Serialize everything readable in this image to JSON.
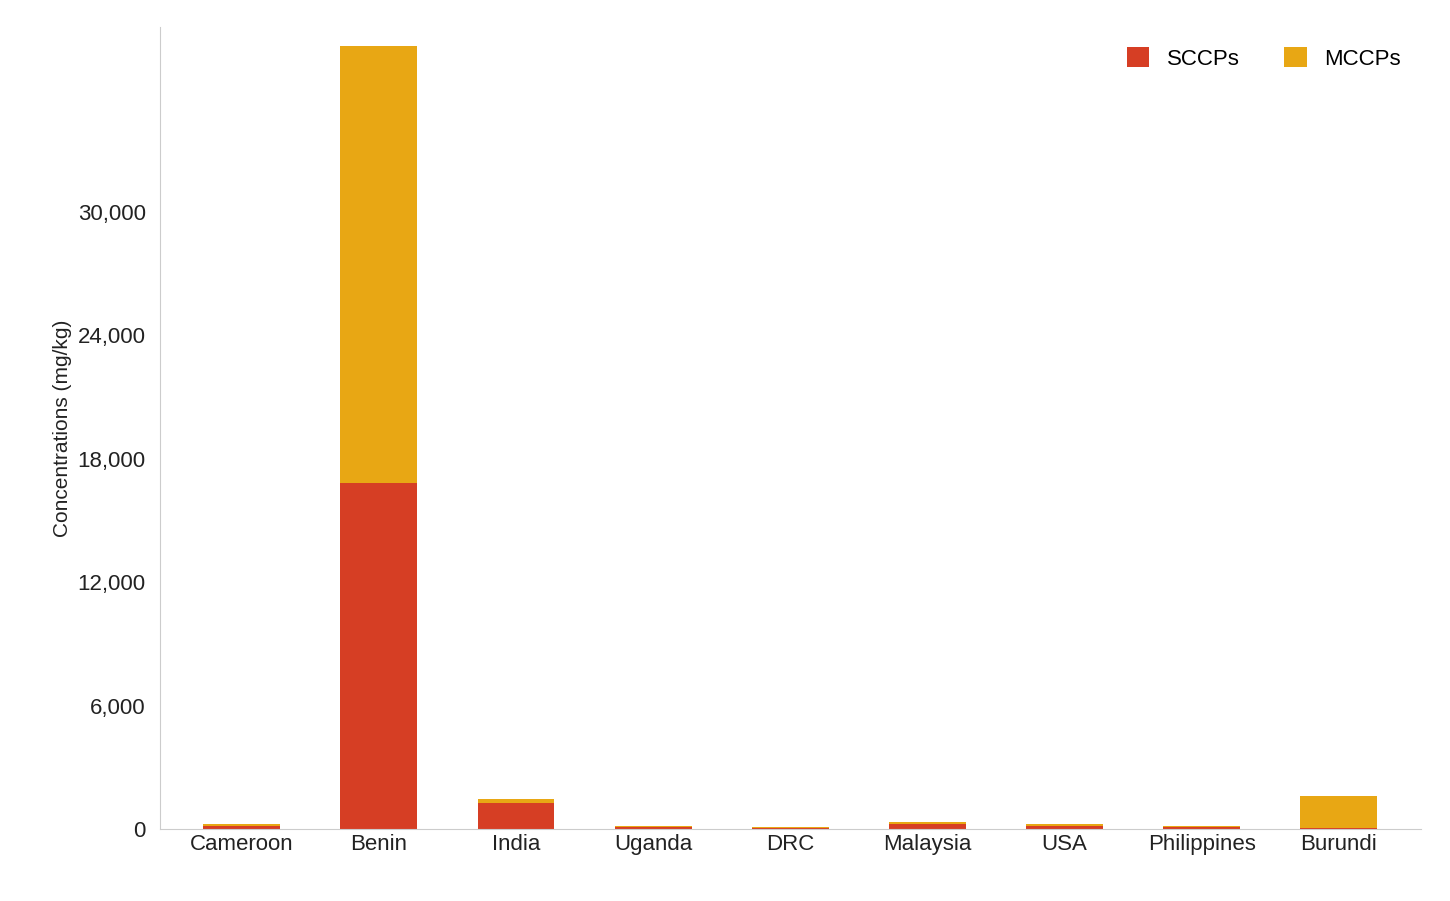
{
  "chart_data": {
    "type": "bar",
    "stacked": true,
    "legend": "upper right",
    "ylabel": "Concentrations (mg/kg)",
    "categories": [
      "Cameroon",
      "Benin",
      "India",
      "Uganda",
      "DRC",
      "Malaysia",
      "USA",
      "Philippines",
      "Burundi"
    ],
    "series": [
      {
        "name": "SCCPs",
        "color": "#d63e24",
        "values": [
          150,
          16800,
          1250,
          80,
          60,
          250,
          150,
          80,
          30
        ]
      },
      {
        "name": "MCCPs",
        "color": "#e8a714",
        "values": [
          100,
          21300,
          200,
          60,
          50,
          100,
          80,
          50,
          1550
        ]
      }
    ],
    "ylim": [
      0,
      39000
    ],
    "yticks": [
      0,
      {
        "value": 6000,
        "label": "6,000"
      },
      {
        "value": 12000,
        "label": "12,000"
      },
      {
        "value": 18000,
        "label": "18,000"
      },
      {
        "value": 24000,
        "label": "24,000"
      },
      {
        "value": 30000,
        "label": "30,000"
      }
    ]
  }
}
